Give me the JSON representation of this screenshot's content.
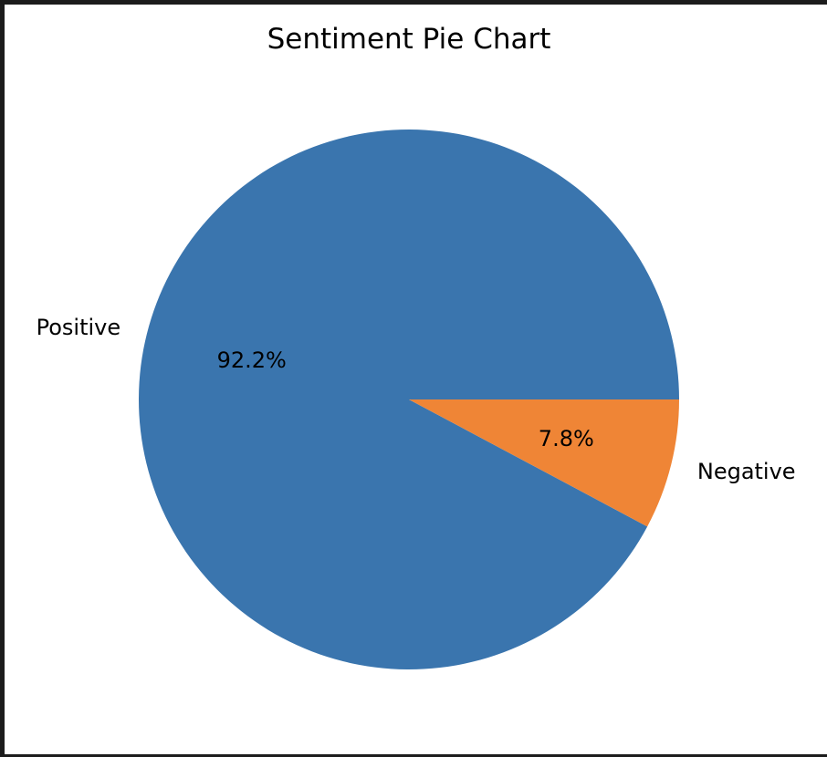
{
  "chart_data": {
    "type": "pie",
    "title": "Sentiment Pie Chart",
    "categories": [
      "Positive",
      "Negative"
    ],
    "values": [
      92.2,
      7.8
    ],
    "autopct_labels": [
      "92.2%",
      "7.8%"
    ],
    "colors": [
      "#3a75ae",
      "#ef8536"
    ],
    "legend": "none"
  }
}
